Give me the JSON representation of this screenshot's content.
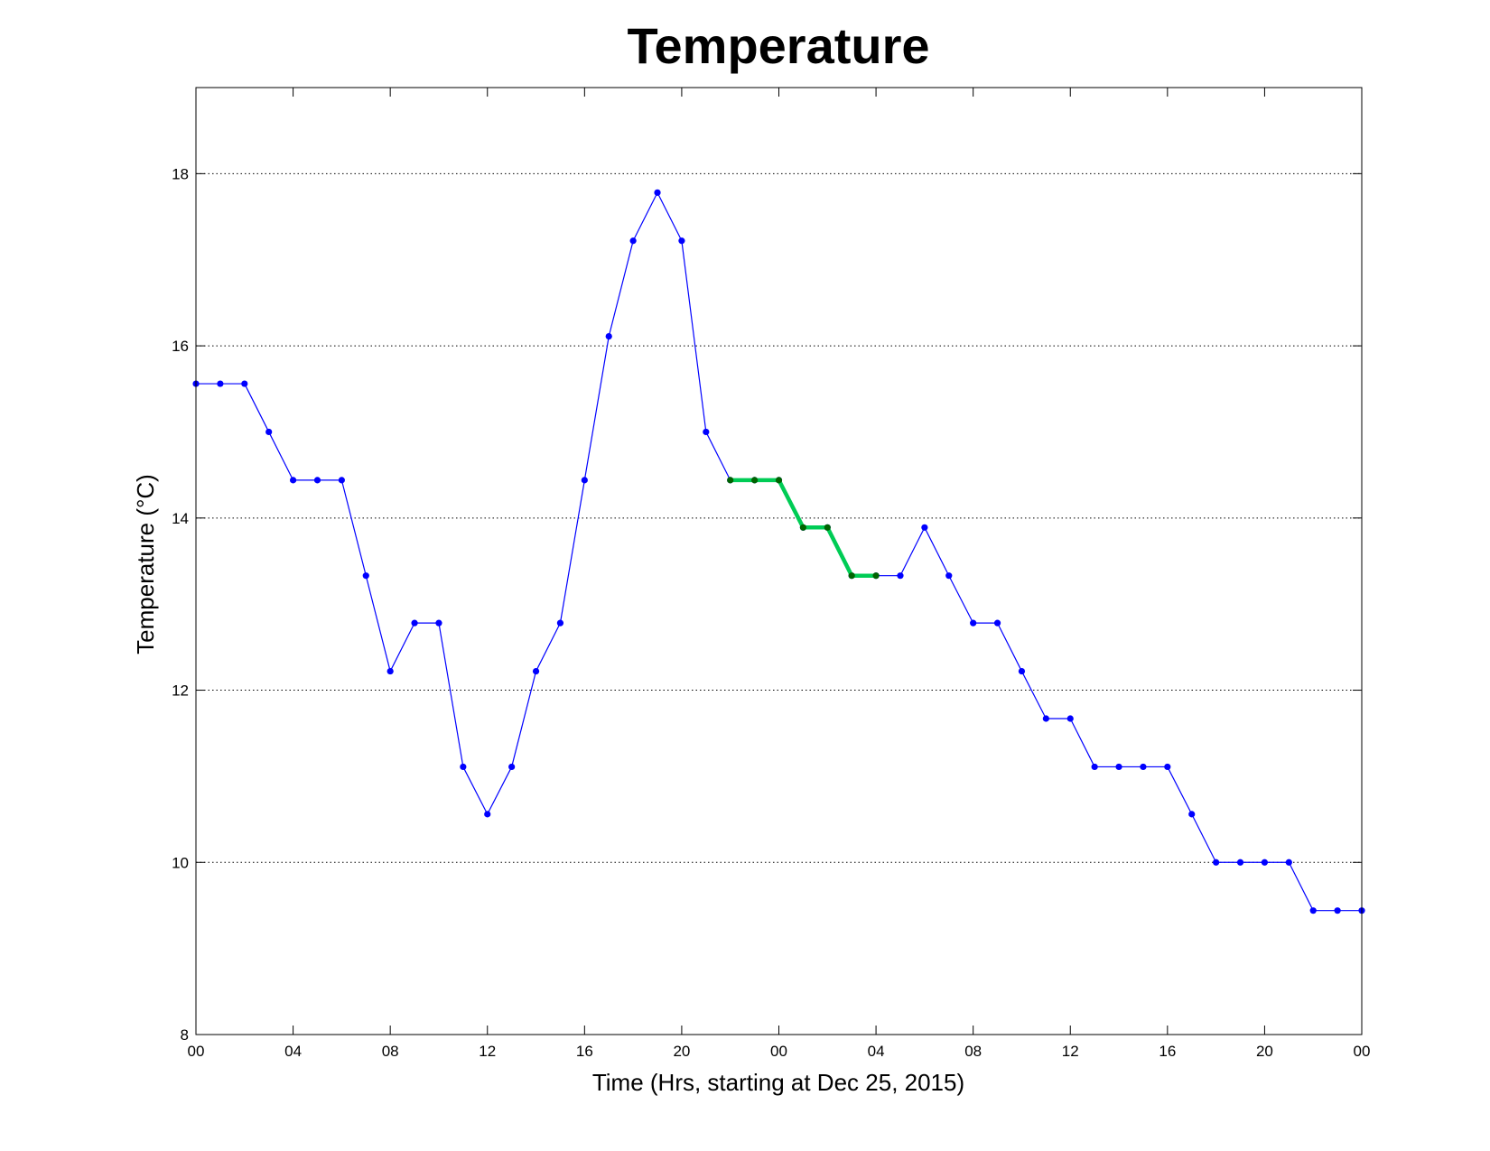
{
  "chart_data": {
    "type": "line",
    "title": "Temperature",
    "xlabel": "Time (Hrs, starting at Dec 25, 2015)",
    "ylabel": "Temperature (°C)",
    "xlim": [
      0,
      48
    ],
    "ylim": [
      8,
      19
    ],
    "x_ticks": [
      0,
      4,
      8,
      12,
      16,
      20,
      24,
      28,
      32,
      36,
      40,
      44,
      48
    ],
    "x_tick_labels": [
      "00",
      "04",
      "08",
      "12",
      "16",
      "20",
      "00",
      "04",
      "08",
      "12",
      "16",
      "20",
      "00"
    ],
    "y_ticks": [
      8,
      10,
      12,
      14,
      16,
      18
    ],
    "y_tick_labels": [
      "8",
      "10",
      "12",
      "14",
      "16",
      "18"
    ],
    "grid": "horizontal-dotted",
    "series": [
      {
        "color": "#0000ff",
        "x": [
          0,
          1,
          2,
          3,
          4,
          5,
          6,
          7,
          8,
          9,
          10,
          11,
          12,
          13,
          14,
          15,
          16,
          17,
          18,
          19,
          20,
          21,
          22,
          23,
          24,
          25,
          26,
          27,
          28,
          29,
          30,
          31,
          32,
          33,
          34,
          35,
          36,
          37,
          38,
          39,
          40,
          41,
          42,
          43,
          44,
          45,
          46,
          47,
          48
        ],
        "y": [
          15.56,
          15.56,
          15.56,
          15.0,
          14.44,
          14.44,
          14.44,
          13.33,
          12.22,
          12.78,
          12.78,
          11.11,
          10.56,
          11.11,
          12.22,
          12.78,
          14.44,
          16.11,
          17.22,
          17.78,
          17.22,
          15.0,
          14.44,
          14.44,
          14.44,
          13.89,
          13.89,
          13.33,
          13.33,
          13.33,
          13.89,
          13.33,
          12.78,
          12.78,
          12.22,
          11.67,
          11.67,
          11.11,
          11.11,
          11.11,
          11.11,
          10.56,
          10.0,
          10.0,
          10.0,
          10.0,
          9.44,
          9.44,
          9.44
        ]
      },
      {
        "color": "#00cc55",
        "marker_color": "#006400",
        "x": [
          22,
          23,
          24,
          25,
          26,
          27,
          28
        ],
        "y": [
          14.44,
          14.44,
          14.44,
          13.89,
          13.89,
          13.33,
          13.33
        ]
      }
    ]
  }
}
